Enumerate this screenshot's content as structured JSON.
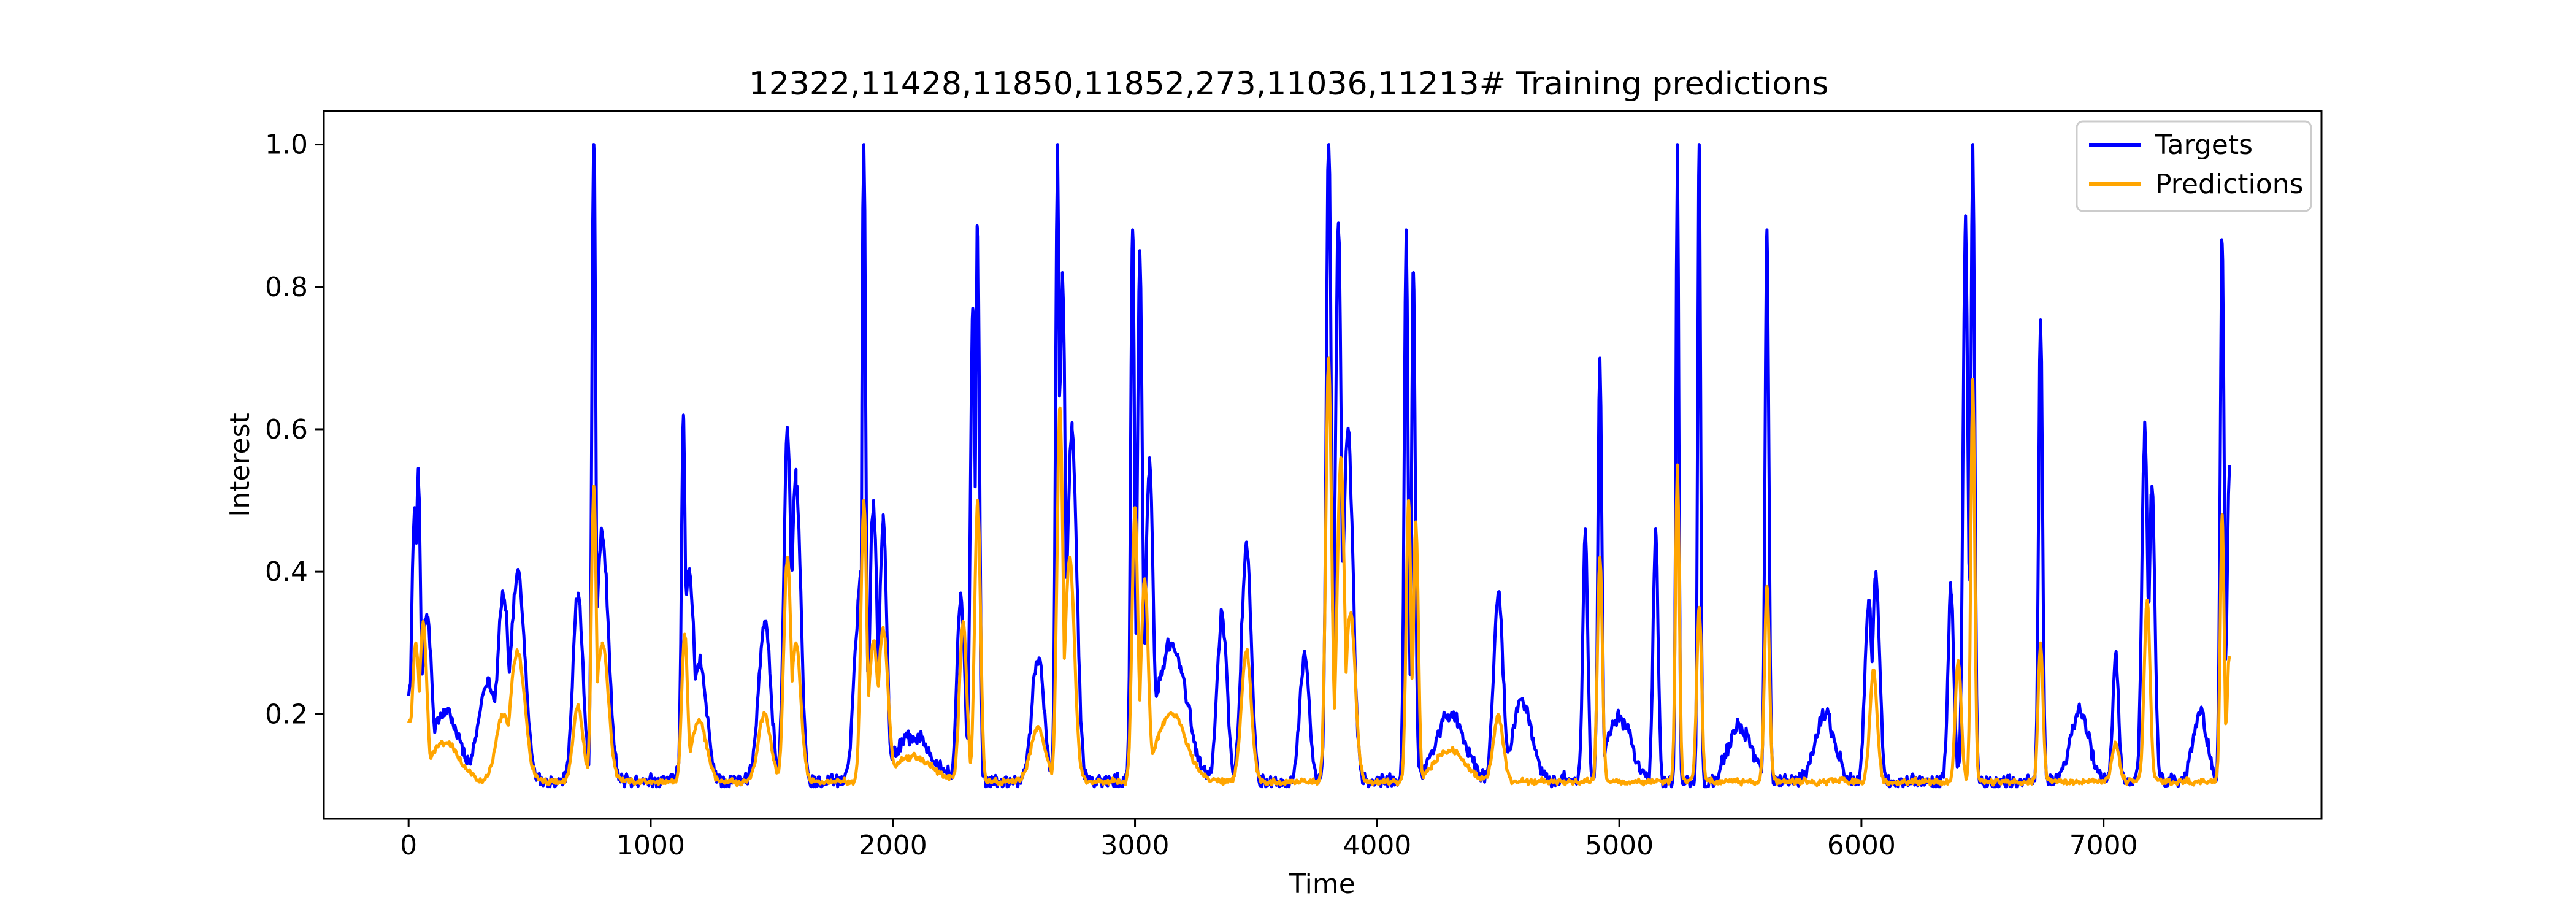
{
  "chart_data": {
    "type": "line",
    "title": "12322,11428,11850,11852,273,11036,11213# Training predictions",
    "xlabel": "Time",
    "ylabel": "Interest",
    "xlim": [
      -350,
      7900
    ],
    "ylim": [
      0.053,
      1.047
    ],
    "x_ticks": [
      0,
      1000,
      2000,
      3000,
      4000,
      5000,
      6000,
      7000
    ],
    "x_tick_labels": [
      "0",
      "1000",
      "2000",
      "3000",
      "4000",
      "5000",
      "6000",
      "7000"
    ],
    "y_ticks": [
      0.2,
      0.4,
      0.6,
      0.8,
      1.0
    ],
    "y_tick_labels": [
      "0.2",
      "0.4",
      "0.6",
      "0.8",
      "1.0"
    ],
    "legend": {
      "position": "top-right",
      "entries": [
        "Targets",
        "Predictions"
      ]
    },
    "x_range": [
      0,
      7520
    ],
    "series": [
      {
        "name": "Targets",
        "color": "#0000ff",
        "base": 0.105,
        "noise": 0.05,
        "peaks": [
          [
            0,
            0.24,
            30
          ],
          [
            25,
            0.49,
            12
          ],
          [
            40,
            0.53,
            10
          ],
          [
            75,
            0.34,
            20
          ],
          [
            150,
            0.2,
            60
          ],
          [
            330,
            0.25,
            40
          ],
          [
            390,
            0.37,
            25
          ],
          [
            450,
            0.39,
            30
          ],
          [
            700,
            0.37,
            20
          ],
          [
            765,
            1.0,
            8
          ],
          [
            800,
            0.45,
            25
          ],
          [
            1135,
            0.62,
            8
          ],
          [
            1160,
            0.4,
            20
          ],
          [
            1200,
            0.27,
            30
          ],
          [
            1470,
            0.33,
            25
          ],
          [
            1565,
            0.6,
            15
          ],
          [
            1600,
            0.52,
            20
          ],
          [
            1870,
            0.4,
            25
          ],
          [
            1880,
            1.0,
            8
          ],
          [
            1920,
            0.5,
            15
          ],
          [
            1960,
            0.48,
            15
          ],
          [
            2080,
            0.17,
            80
          ],
          [
            2280,
            0.37,
            15
          ],
          [
            2330,
            0.77,
            10
          ],
          [
            2350,
            0.88,
            8
          ],
          [
            2600,
            0.28,
            25
          ],
          [
            2680,
            1.0,
            8
          ],
          [
            2700,
            0.82,
            12
          ],
          [
            2740,
            0.6,
            20
          ],
          [
            2990,
            0.88,
            8
          ],
          [
            3020,
            0.85,
            10
          ],
          [
            3060,
            0.56,
            15
          ],
          [
            3150,
            0.3,
            60
          ],
          [
            3360,
            0.34,
            20
          ],
          [
            3460,
            0.44,
            20
          ],
          [
            3700,
            0.28,
            20
          ],
          [
            3800,
            1.0,
            10
          ],
          [
            3840,
            0.88,
            12
          ],
          [
            3880,
            0.6,
            20
          ],
          [
            4120,
            0.88,
            8
          ],
          [
            4150,
            0.82,
            8
          ],
          [
            4300,
            0.2,
            60
          ],
          [
            4500,
            0.36,
            20
          ],
          [
            4600,
            0.22,
            40
          ],
          [
            4860,
            0.46,
            10
          ],
          [
            4920,
            0.7,
            8
          ],
          [
            5000,
            0.2,
            50
          ],
          [
            5150,
            0.46,
            10
          ],
          [
            5240,
            1.0,
            6
          ],
          [
            5330,
            1.0,
            6
          ],
          [
            5500,
            0.18,
            50
          ],
          [
            5610,
            0.88,
            8
          ],
          [
            5850,
            0.2,
            40
          ],
          [
            6030,
            0.36,
            15
          ],
          [
            6060,
            0.4,
            15
          ],
          [
            6370,
            0.37,
            12
          ],
          [
            6430,
            0.9,
            10
          ],
          [
            6460,
            1.0,
            8
          ],
          [
            6740,
            0.75,
            8
          ],
          [
            6900,
            0.2,
            40
          ],
          [
            7050,
            0.28,
            12
          ],
          [
            7170,
            0.61,
            12
          ],
          [
            7200,
            0.52,
            12
          ],
          [
            7400,
            0.2,
            30
          ],
          [
            7490,
            0.86,
            8
          ],
          [
            7520,
            0.55,
            10
          ]
        ]
      },
      {
        "name": "Predictions",
        "color": "#ffa500",
        "base": 0.105,
        "noise": 0.02,
        "peaks": [
          [
            0,
            0.19,
            30
          ],
          [
            30,
            0.3,
            15
          ],
          [
            60,
            0.33,
            15
          ],
          [
            150,
            0.16,
            60
          ],
          [
            390,
            0.2,
            30
          ],
          [
            450,
            0.29,
            30
          ],
          [
            700,
            0.21,
            20
          ],
          [
            765,
            0.52,
            10
          ],
          [
            800,
            0.3,
            25
          ],
          [
            1140,
            0.31,
            12
          ],
          [
            1200,
            0.19,
            30
          ],
          [
            1470,
            0.2,
            25
          ],
          [
            1565,
            0.42,
            15
          ],
          [
            1600,
            0.3,
            20
          ],
          [
            1880,
            0.5,
            12
          ],
          [
            1920,
            0.3,
            20
          ],
          [
            1960,
            0.32,
            20
          ],
          [
            2080,
            0.14,
            80
          ],
          [
            2290,
            0.33,
            15
          ],
          [
            2350,
            0.5,
            12
          ],
          [
            2600,
            0.18,
            30
          ],
          [
            2690,
            0.63,
            12
          ],
          [
            2730,
            0.42,
            20
          ],
          [
            3000,
            0.49,
            12
          ],
          [
            3040,
            0.39,
            15
          ],
          [
            3150,
            0.2,
            60
          ],
          [
            3460,
            0.29,
            20
          ],
          [
            3800,
            0.7,
            12
          ],
          [
            3850,
            0.56,
            15
          ],
          [
            3890,
            0.34,
            20
          ],
          [
            4130,
            0.5,
            10
          ],
          [
            4160,
            0.47,
            10
          ],
          [
            4300,
            0.15,
            60
          ],
          [
            4500,
            0.2,
            20
          ],
          [
            4920,
            0.42,
            10
          ],
          [
            5240,
            0.55,
            8
          ],
          [
            5330,
            0.35,
            10
          ],
          [
            5610,
            0.38,
            10
          ],
          [
            6050,
            0.26,
            15
          ],
          [
            6400,
            0.28,
            12
          ],
          [
            6460,
            0.67,
            8
          ],
          [
            6740,
            0.3,
            10
          ],
          [
            7050,
            0.16,
            15
          ],
          [
            7180,
            0.36,
            12
          ],
          [
            7490,
            0.48,
            8
          ],
          [
            7520,
            0.28,
            10
          ]
        ]
      }
    ]
  }
}
